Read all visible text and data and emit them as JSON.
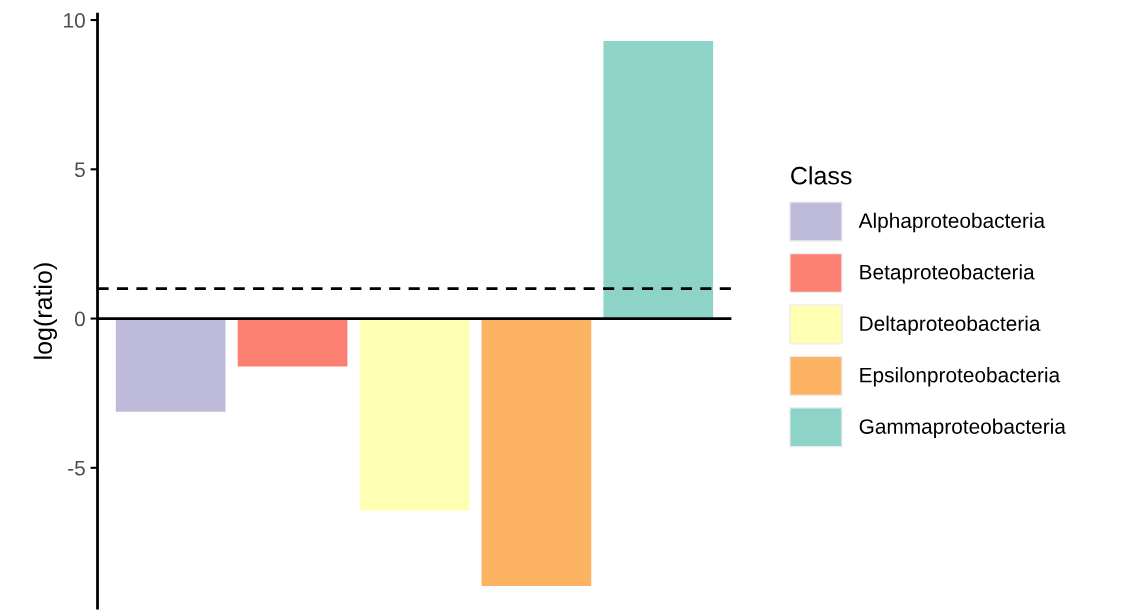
{
  "chart_data": {
    "type": "bar",
    "ylabel": "log(ratio)",
    "legend_title": "Class",
    "categories": [
      null,
      null,
      null,
      null,
      null
    ],
    "series": [
      {
        "name": "Alphaproteobacteria",
        "color": "#bebada",
        "values": [
          -3.12,
          null,
          null,
          null,
          null
        ]
      },
      {
        "name": "Betaproteobacteria",
        "color": "#fb8072",
        "values": [
          null,
          -1.61,
          null,
          null,
          null
        ]
      },
      {
        "name": "Deltaproteobacteria",
        "color": "#ffffb3",
        "values": [
          null,
          null,
          -6.44,
          null,
          null
        ]
      },
      {
        "name": "Epsilonproteobacteria",
        "color": "#fdb462",
        "values": [
          null,
          null,
          null,
          -8.96,
          null
        ]
      },
      {
        "name": "Gammaproteobacteria",
        "color": "#8dd3c7",
        "values": [
          null,
          null,
          null,
          null,
          9.3
        ]
      }
    ],
    "ylim": [
      -9.7,
      10.2
    ],
    "yticks": [
      {
        "value": -5,
        "label": "-5"
      },
      0,
      5,
      10
    ],
    "ref_lines": [
      {
        "axis": "y",
        "value": 0,
        "color": "#000000",
        "line_style": "solid"
      },
      {
        "axis": "y",
        "value": 1,
        "color": "#000000",
        "line_style": "dashed"
      }
    ],
    "legend": "right",
    "grid": false,
    "tick_labels": "y"
  }
}
